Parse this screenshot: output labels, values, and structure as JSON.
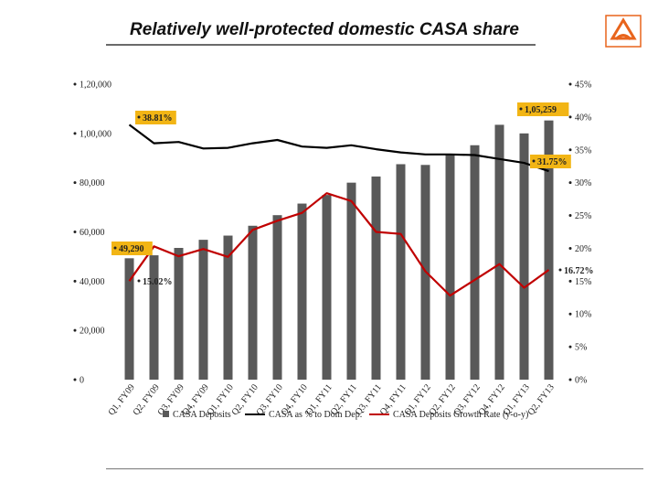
{
  "header": {
    "title": "Relatively well-protected domestic CASA share",
    "logo_icon": "bank-of-baroda-logo-icon",
    "logo_color": "#e8641c"
  },
  "colors": {
    "bars": "#595959",
    "casa_share_line": "#000000",
    "growth_line": "#c00000",
    "highlight_box": "#f2b515"
  },
  "chart_data": {
    "type": "bar",
    "categories": [
      "Q1, FY09",
      "Q2, FY09",
      "Q3, FY09",
      "Q4, FY09",
      "Q1, FY10",
      "Q2, FY10",
      "Q3, FY10",
      "Q4, FY10",
      "Q1, FY11",
      "Q2, FY11",
      "Q3, FY11",
      "Q4, FY11",
      "Q1, FY12",
      "Q2, FY12",
      "Q3, FY12",
      "Q4, FY12",
      "Q1, FY13",
      "Q2, FY13"
    ],
    "series": [
      {
        "name": "CASA Deposits",
        "type": "bar",
        "axis": "left",
        "values": [
          49290,
          50500,
          53500,
          56800,
          58500,
          62500,
          66800,
          71500,
          75000,
          80000,
          82500,
          87500,
          87200,
          91200,
          95200,
          103500,
          100000,
          105259
        ]
      },
      {
        "name": "CASA as % to Dom Dep.",
        "type": "line",
        "axis": "right",
        "values": [
          38.81,
          36.0,
          36.2,
          35.2,
          35.3,
          36.0,
          36.5,
          35.5,
          35.3,
          35.7,
          35.1,
          34.6,
          34.3,
          34.3,
          34.2,
          33.6,
          33.0,
          31.75
        ]
      },
      {
        "name": "CASA Deposits Growth Rate (y-o-y)",
        "type": "line",
        "axis": "right",
        "values": [
          15.02,
          20.3,
          18.8,
          19.9,
          18.7,
          22.8,
          24.2,
          25.4,
          28.4,
          27.2,
          22.5,
          22.2,
          16.5,
          12.8,
          15.2,
          17.6,
          14.0,
          16.72
        ]
      }
    ],
    "y_left": {
      "min": 0,
      "max": 120000,
      "ticks": [
        "0",
        "20,000",
        "40,000",
        "60,000",
        "80,000",
        "1,00,000",
        "1,20,000"
      ]
    },
    "y_right": {
      "min": 0,
      "max": 45,
      "ticks": [
        "0%",
        "5%",
        "10%",
        "15%",
        "20%",
        "25%",
        "30%",
        "35%",
        "40%",
        "45%"
      ]
    },
    "annotations": {
      "first_bar": "49,290",
      "last_bar": "1,05,259",
      "casa_share_first": "38.81%",
      "casa_share_last": "31.75%",
      "growth_first": "15.02%",
      "growth_last": "16.72%"
    },
    "legend_position": "bottom",
    "grid": false
  }
}
